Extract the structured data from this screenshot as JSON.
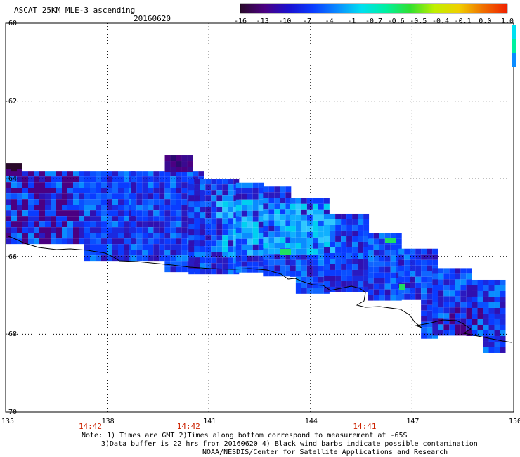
{
  "header": {
    "title": "ASCAT 25KM MLE-3 ascending",
    "date": "20160620"
  },
  "colorbar": {
    "labels": [
      "-16",
      "-13",
      "-10",
      "-7",
      "-4",
      "-1",
      "-0.7",
      "-0.6",
      "-0.5",
      "-0.4",
      "-0.1",
      "0.0",
      "1.0"
    ],
    "stops": [
      "#2a0a2a",
      "#4b0082",
      "#1a10d0",
      "#0a3cff",
      "#0a8cff",
      "#00e0f0",
      "#00f0a0",
      "#30e030",
      "#c0f000",
      "#f0d000",
      "#f07000",
      "#f02000"
    ]
  },
  "axes": {
    "lat_labels": [
      "-60",
      "-62",
      "-64",
      "-66",
      "-68",
      "-70"
    ],
    "lon_labels": [
      "135",
      "138",
      "141",
      "144",
      "147",
      "150"
    ]
  },
  "times": [
    {
      "label": "14:42",
      "lon": 137.5
    },
    {
      "label": "14:42",
      "lon": 140.4
    },
    {
      "label": "14:41",
      "lon": 145.6
    }
  ],
  "notes": {
    "line1": "Note: 1) Times are GMT 2)Times along bottom correspond to measurement at -65S",
    "line2": "3)Data buffer is 22 hrs from 20160620 4) Black wind barbs indicate possible contamination",
    "line3": "NOAA/NESDIS/Center for Satellite Applications and Research"
  },
  "swath": {
    "rows": [
      {
        "lat_top": -63.6,
        "lon_start": 135.0,
        "lon_end": 135.4,
        "tone": "dark"
      },
      {
        "lat_top": -63.8,
        "lon_start": 135.0,
        "lon_end": 138.7,
        "tone": "blue"
      },
      {
        "lat_top": -63.8,
        "lon_start": 138.7,
        "lon_end": 140.8,
        "tone": "blue"
      },
      {
        "lat_top": -63.4,
        "lon_start": 139.7,
        "lon_end": 140.4,
        "tone": "purple"
      },
      {
        "lat_top": -64.0,
        "lon_start": 140.4,
        "lon_end": 141.8,
        "tone": "blue"
      },
      {
        "lat_top": -64.1,
        "lon_start": 141.8,
        "lon_end": 142.6,
        "tone": "blue"
      },
      {
        "lat_top": -64.2,
        "lon_start": 142.6,
        "lon_end": 143.4,
        "tone": "blue"
      },
      {
        "lat_top": -64.5,
        "lon_start": 143.4,
        "lon_end": 144.4,
        "tone": "blue"
      },
      {
        "lat_top": -64.9,
        "lon_start": 144.4,
        "lon_end": 145.7,
        "tone": "blue"
      },
      {
        "lat_top": -65.4,
        "lon_start": 145.7,
        "lon_end": 146.6,
        "tone": "blue"
      },
      {
        "lat_top": -65.8,
        "lon_start": 146.6,
        "lon_end": 147.6,
        "tone": "blue"
      },
      {
        "lat_top": -66.3,
        "lon_start": 147.6,
        "lon_end": 148.6,
        "tone": "blue"
      },
      {
        "lat_top": -66.6,
        "lon_start": 148.6,
        "lon_end": 149.6,
        "tone": "blue"
      }
    ]
  },
  "colorbar_side": [
    "#00e0f0",
    "#00f0a0",
    "#0a8cff"
  ]
}
